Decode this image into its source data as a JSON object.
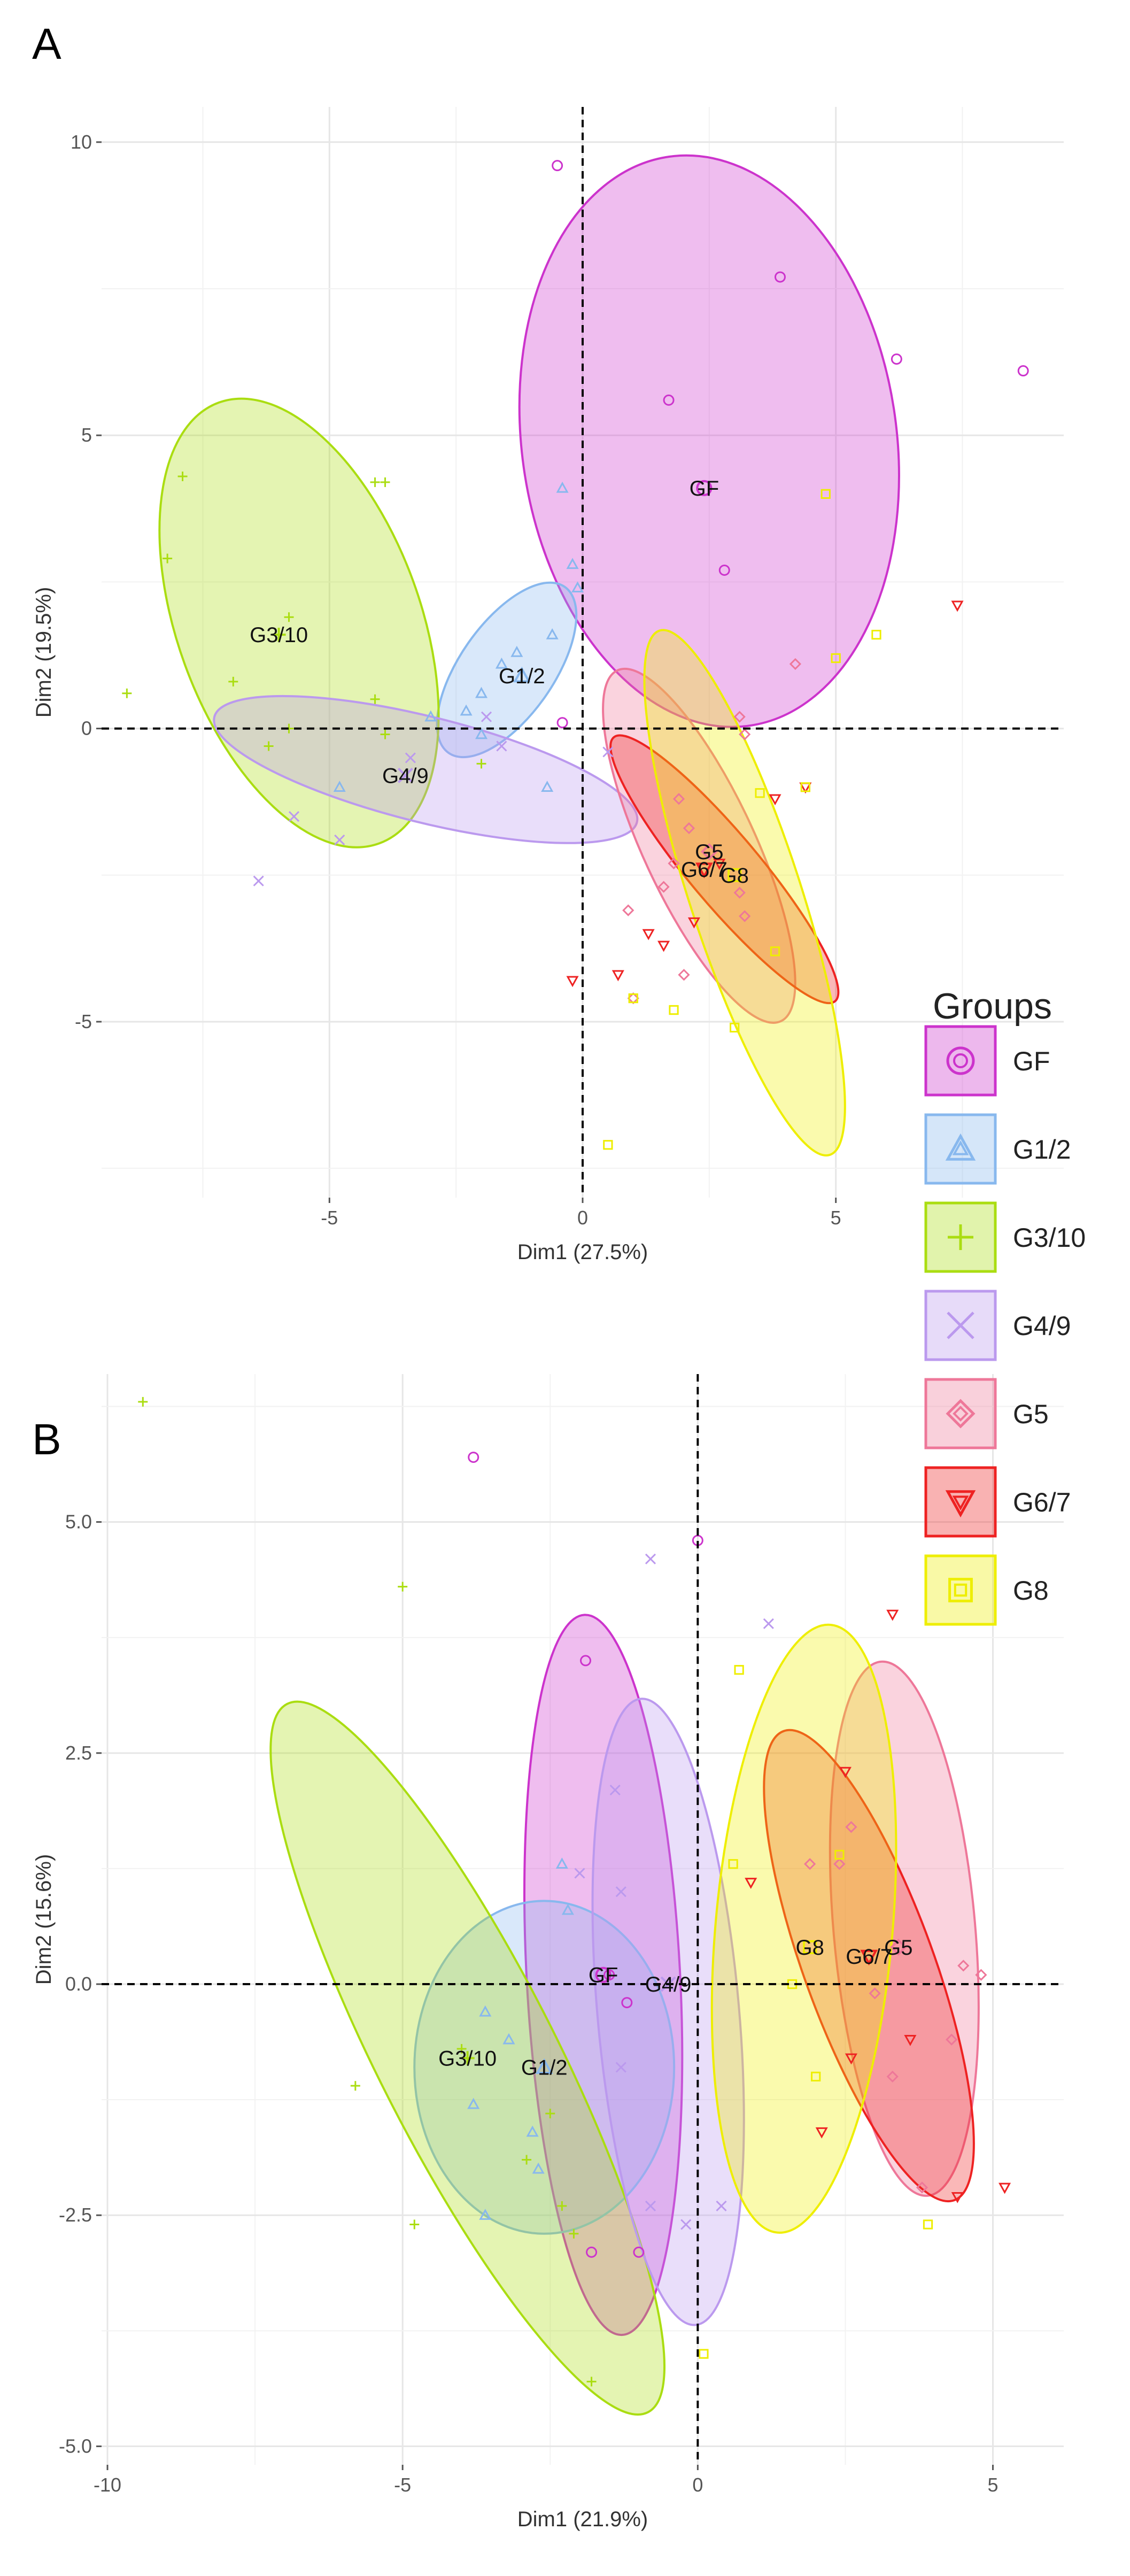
{
  "chart_data": [
    {
      "panel": "A",
      "type": "scatter",
      "xlabel": "Dim1 (27.5%)",
      "ylabel": "Dim2 (19.5%)",
      "xlim": [
        -9.5,
        9.5
      ],
      "ylim": [
        -8,
        10.6
      ],
      "xticks": [
        -5,
        0,
        5
      ],
      "yticks": [
        10,
        5,
        0,
        -5
      ],
      "tick_labels_x": [
        "-5",
        "0",
        "5"
      ],
      "tick_labels_y": [
        "10",
        "5",
        "0",
        "-5"
      ],
      "grid": true,
      "groups": [
        {
          "name": "GF",
          "color": "#CC33CC",
          "symbol": "circle",
          "center": [
            2.4,
            4.1
          ],
          "ellipse": {
            "cx": 2.5,
            "cy": 4.9,
            "rx": 3.7,
            "ry": 4.9,
            "angle": -8
          },
          "points": [
            [
              -0.5,
              9.6
            ],
            [
              3.9,
              7.7
            ],
            [
              6.2,
              6.3
            ],
            [
              8.7,
              6.1
            ],
            [
              1.7,
              5.6
            ],
            [
              2.8,
              2.7
            ],
            [
              -0.4,
              0.1
            ]
          ]
        },
        {
          "name": "G1/2",
          "color": "#88B8EE",
          "symbol": "triangle",
          "center": [
            -1.2,
            0.9
          ],
          "ellipse": {
            "cx": -1.5,
            "cy": 1.0,
            "rx": 2.0,
            "ry": 0.8,
            "angle": -55
          },
          "points": [
            [
              -0.4,
              4.1
            ],
            [
              -0.2,
              2.8
            ],
            [
              -0.1,
              2.4
            ],
            [
              -0.6,
              1.6
            ],
            [
              -1.3,
              1.3
            ],
            [
              -1.6,
              1.1
            ],
            [
              -2.0,
              0.6
            ],
            [
              -2.3,
              0.3
            ],
            [
              -3.0,
              0.2
            ],
            [
              -4.8,
              -1.0
            ],
            [
              -0.7,
              -1.0
            ],
            [
              -2.0,
              -0.1
            ]
          ]
        },
        {
          "name": "G3/10",
          "color": "#AADD11",
          "symbol": "plus",
          "center": [
            -6.0,
            1.6
          ],
          "ellipse": {
            "cx": -5.6,
            "cy": 1.8,
            "rx": 2.4,
            "ry": 4.0,
            "angle": -20
          },
          "points": [
            [
              -7.9,
              4.3
            ],
            [
              -4.1,
              4.2
            ],
            [
              -3.9,
              4.2
            ],
            [
              -8.2,
              2.9
            ],
            [
              -5.8,
              1.9
            ],
            [
              -6.9,
              0.8
            ],
            [
              -9.0,
              0.6
            ],
            [
              -6.2,
              -0.3
            ],
            [
              -3.9,
              -0.1
            ],
            [
              -2.0,
              -0.6
            ],
            [
              -5.8,
              0.0
            ],
            [
              -4.1,
              0.5
            ]
          ]
        },
        {
          "name": "G4/9",
          "color": "#BB99EE",
          "symbol": "x",
          "center": [
            -3.5,
            -0.8
          ],
          "ellipse": {
            "cx": -3.1,
            "cy": -0.7,
            "rx": 4.3,
            "ry": 0.9,
            "angle": 14
          },
          "points": [
            [
              -6.4,
              -2.6
            ],
            [
              -5.7,
              -1.5
            ],
            [
              -4.8,
              -1.9
            ],
            [
              -1.6,
              -0.3
            ],
            [
              -1.9,
              0.2
            ],
            [
              0.5,
              -0.4
            ],
            [
              -3.4,
              -0.5
            ]
          ]
        },
        {
          "name": "G5",
          "color": "#EE7799",
          "symbol": "diamond",
          "center": [
            2.5,
            -2.1
          ],
          "ellipse": {
            "cx": 2.3,
            "cy": -2.0,
            "rx": 1.1,
            "ry": 3.3,
            "angle": -25
          },
          "points": [
            [
              3.1,
              0.2
            ],
            [
              3.2,
              -0.1
            ],
            [
              1.9,
              -1.2
            ],
            [
              2.1,
              -1.7
            ],
            [
              1.8,
              -2.3
            ],
            [
              1.6,
              -2.7
            ],
            [
              3.1,
              -2.8
            ],
            [
              0.9,
              -3.1
            ],
            [
              3.2,
              -3.2
            ],
            [
              2.0,
              -4.2
            ],
            [
              1.0,
              -4.6
            ],
            [
              4.2,
              1.1
            ]
          ]
        },
        {
          "name": "G6/7",
          "color": "#EE2222",
          "symbol": "triangle-down",
          "center": [
            2.4,
            -2.4
          ],
          "ellipse": {
            "cx": 2.8,
            "cy": -2.4,
            "rx": 3.4,
            "ry": 0.6,
            "angle": 50
          },
          "points": [
            [
              7.4,
              2.1
            ],
            [
              4.4,
              -1.0
            ],
            [
              3.8,
              -1.2
            ],
            [
              2.7,
              -2.3
            ],
            [
              2.2,
              -3.3
            ],
            [
              1.3,
              -3.5
            ],
            [
              1.6,
              -3.7
            ],
            [
              0.7,
              -4.2
            ],
            [
              -0.2,
              -4.3
            ]
          ]
        },
        {
          "name": "G8",
          "color": "#EEEE00",
          "symbol": "square",
          "center": [
            3.0,
            -2.5
          ],
          "ellipse": {
            "cx": 3.2,
            "cy": -2.8,
            "rx": 1.1,
            "ry": 4.7,
            "angle": -18
          },
          "points": [
            [
              4.8,
              4.0
            ],
            [
              5.8,
              1.6
            ],
            [
              5.0,
              1.2
            ],
            [
              4.4,
              -1.0
            ],
            [
              3.5,
              -1.1
            ],
            [
              3.8,
              -3.8
            ],
            [
              1.8,
              -4.8
            ],
            [
              3.0,
              -5.1
            ],
            [
              1.0,
              -4.6
            ],
            [
              0.5,
              -7.1
            ]
          ]
        }
      ]
    },
    {
      "panel": "B",
      "type": "scatter",
      "xlabel": "Dim1 (21.9%)",
      "ylabel": "Dim2 (15.6%)",
      "xlim": [
        -10.1,
        6.2
      ],
      "ylim": [
        -5.2,
        6.6
      ],
      "xticks": [
        -10,
        -5,
        0,
        5
      ],
      "yticks": [
        5.0,
        2.5,
        0.0,
        -2.5,
        -5.0
      ],
      "tick_labels_x": [
        "-10",
        "-5",
        "0",
        "5"
      ],
      "tick_labels_y": [
        "5.0",
        "2.5",
        "0.0",
        "-2.5",
        "-5.0"
      ],
      "grid": true,
      "groups": [
        {
          "name": "GF",
          "color": "#CC33CC",
          "symbol": "circle",
          "center": [
            -1.6,
            0.1
          ],
          "ellipse": {
            "cx": -1.6,
            "cy": 0.1,
            "rx": 1.3,
            "ry": 3.9,
            "angle": -3
          },
          "points": [
            [
              -3.8,
              5.7
            ],
            [
              0.0,
              4.8
            ],
            [
              -1.9,
              3.5
            ],
            [
              -1.5,
              0.1
            ],
            [
              -1.2,
              -0.2
            ],
            [
              -1.0,
              -2.9
            ],
            [
              -1.8,
              -2.9
            ]
          ]
        },
        {
          "name": "G1/2",
          "color": "#88B8EE",
          "symbol": "triangle",
          "center": [
            -2.6,
            -0.9
          ],
          "ellipse": {
            "cx": -2.6,
            "cy": -0.9,
            "rx": 2.2,
            "ry": 1.8,
            "angle": 0
          },
          "points": [
            [
              -2.3,
              1.3
            ],
            [
              -3.6,
              -0.3
            ],
            [
              -3.2,
              -0.6
            ],
            [
              -3.8,
              -1.3
            ],
            [
              -2.8,
              -1.6
            ],
            [
              -2.7,
              -2.0
            ],
            [
              -3.6,
              -2.5
            ],
            [
              -2.2,
              0.8
            ]
          ]
        },
        {
          "name": "G3/10",
          "color": "#AADD11",
          "symbol": "plus",
          "center": [
            -3.9,
            -0.8
          ],
          "ellipse": {
            "cx": -3.9,
            "cy": -0.8,
            "rx": 1.5,
            "ry": 4.3,
            "angle": -27
          },
          "points": [
            [
              -9.4,
              6.3
            ],
            [
              -5.0,
              4.3
            ],
            [
              -5.8,
              -1.1
            ],
            [
              -4.8,
              -2.6
            ],
            [
              -2.9,
              -1.9
            ],
            [
              -2.3,
              -2.4
            ],
            [
              -2.1,
              -2.7
            ],
            [
              -1.8,
              -4.3
            ],
            [
              -2.5,
              -1.4
            ],
            [
              -4.0,
              -0.7
            ]
          ]
        },
        {
          "name": "G4/9",
          "color": "#BB99EE",
          "symbol": "x",
          "center": [
            -0.5,
            0.0
          ],
          "ellipse": {
            "cx": -0.5,
            "cy": -0.3,
            "rx": 1.2,
            "ry": 3.4,
            "angle": -5
          },
          "points": [
            [
              -0.8,
              4.6
            ],
            [
              1.2,
              3.9
            ],
            [
              -1.4,
              2.1
            ],
            [
              -1.3,
              1.0
            ],
            [
              -1.3,
              -0.9
            ],
            [
              -0.8,
              -2.4
            ],
            [
              -0.2,
              -2.6
            ],
            [
              0.4,
              -2.4
            ],
            [
              -2.0,
              1.2
            ]
          ]
        },
        {
          "name": "G5",
          "color": "#EE7799",
          "symbol": "diamond",
          "center": [
            3.4,
            0.4
          ],
          "ellipse": {
            "cx": 3.5,
            "cy": 0.6,
            "rx": 1.2,
            "ry": 2.9,
            "angle": -5
          },
          "points": [
            [
              2.6,
              1.7
            ],
            [
              2.4,
              1.3
            ],
            [
              1.9,
              1.3
            ],
            [
              3.0,
              -0.1
            ],
            [
              3.3,
              -1.0
            ],
            [
              4.3,
              -0.6
            ],
            [
              3.8,
              -2.2
            ],
            [
              4.8,
              0.1
            ],
            [
              4.5,
              0.2
            ]
          ]
        },
        {
          "name": "G6/7",
          "color": "#EE2222",
          "symbol": "triangle-down",
          "center": [
            2.9,
            0.3
          ],
          "ellipse": {
            "cx": 2.9,
            "cy": 0.2,
            "rx": 1.1,
            "ry": 2.7,
            "angle": -20
          },
          "points": [
            [
              3.3,
              4.0
            ],
            [
              2.5,
              2.3
            ],
            [
              0.9,
              1.1
            ],
            [
              2.1,
              -1.6
            ],
            [
              3.6,
              -0.6
            ],
            [
              4.4,
              -2.3
            ],
            [
              5.2,
              -2.2
            ],
            [
              2.6,
              -0.8
            ]
          ]
        },
        {
          "name": "G8",
          "color": "#EEEE00",
          "symbol": "square",
          "center": [
            1.9,
            0.4
          ],
          "ellipse": {
            "cx": 1.8,
            "cy": 0.6,
            "rx": 1.5,
            "ry": 3.3,
            "angle": 5
          },
          "points": [
            [
              0.7,
              3.4
            ],
            [
              0.6,
              1.3
            ],
            [
              1.6,
              0.0
            ],
            [
              2.4,
              1.4
            ],
            [
              3.9,
              -2.6
            ],
            [
              0.1,
              -4.0
            ],
            [
              2.0,
              -1.0
            ]
          ]
        }
      ]
    }
  ],
  "legend": {
    "title": "Groups",
    "entries": [
      "GF",
      "G1/2",
      "G3/10",
      "G4/9",
      "G5",
      "G6/7",
      "G8"
    ]
  }
}
